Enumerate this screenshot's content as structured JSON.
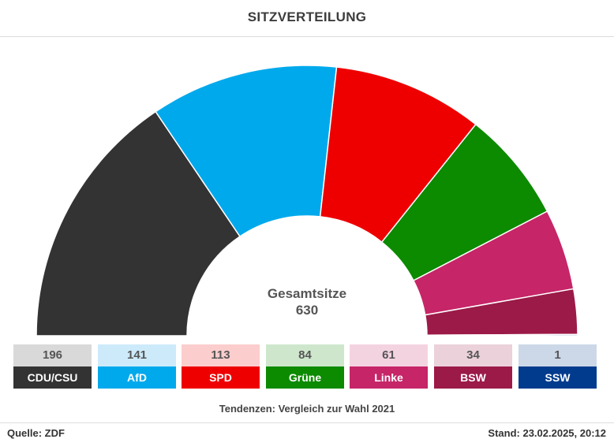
{
  "title": "SITZVERTEILUNG",
  "chart_data": {
    "type": "pie",
    "subtype": "parliament-semicircle",
    "center_label": "Gesamtsitze",
    "center_value": "630",
    "total": 630,
    "series": [
      {
        "name": "CDU/CSU",
        "value": 196,
        "color": "#333333",
        "light": "#d9d9d9"
      },
      {
        "name": "AfD",
        "value": 141,
        "color": "#00a9ec",
        "light": "#cdeafb"
      },
      {
        "name": "SPD",
        "value": 113,
        "color": "#ee0000",
        "light": "#fbcdcd"
      },
      {
        "name": "Grüne",
        "value": 84,
        "color": "#0c8a00",
        "light": "#cee7cc"
      },
      {
        "name": "Linke",
        "value": 61,
        "color": "#c62568",
        "light": "#f4d3e1"
      },
      {
        "name": "BSW",
        "value": 34,
        "color": "#9b1a48",
        "light": "#ebd1da"
      },
      {
        "name": "SSW",
        "value": 1,
        "color": "#003b8e",
        "light": "#ccd8e8"
      }
    ]
  },
  "note": "Tendenzen: Vergleich zur Wahl 2021",
  "source": "Quelle: ZDF",
  "stand": "Stand: 23.02.2025, 20:12"
}
